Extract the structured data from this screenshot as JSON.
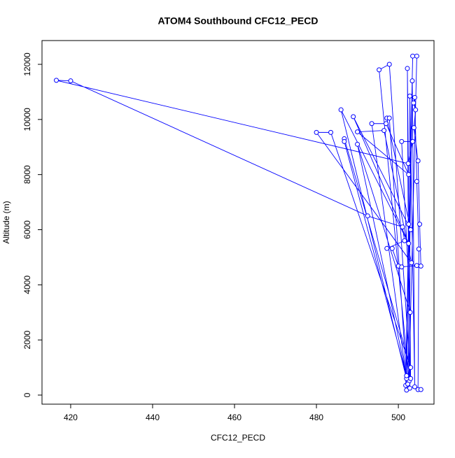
{
  "chart_data": {
    "type": "line",
    "title": "ATOM4 Southbound CFC12_PECD",
    "x_label": "CFC12_PECD",
    "y_label": "Altitude (m)",
    "xlim": [
      413,
      508.7
    ],
    "ylim": [
      -330,
      12863
    ],
    "xticks": [
      420,
      440,
      460,
      480,
      500
    ],
    "yticks": [
      0,
      2000,
      4000,
      6000,
      8000,
      10000,
      12000
    ],
    "color": "#0000ff",
    "x": [
      502.0,
      502.5,
      501.8,
      503.5,
      504.5,
      502.6,
      502.2,
      503.0,
      497.8,
      495.3,
      502.8,
      502.8,
      504.0,
      503.4,
      502.3,
      486.0,
      502.5,
      489.0,
      503.0,
      497.2,
      497.8,
      502.0,
      493.5,
      497.0,
      502.5,
      490.0,
      496.5,
      503.2,
      480.0,
      483.5,
      503.0,
      486.8,
      486.8,
      502.0,
      490.0,
      502.9,
      500.8,
      503.5,
      502.4,
      416.5,
      420.0,
      492.5,
      501.0,
      501.5,
      497.2,
      498.5,
      500.0,
      500.8,
      504.5,
      505.5,
      505.2,
      504.8,
      503.8,
      504.2,
      503.7,
      504.0,
      504.5,
      505.0,
      504.8,
      505.5
    ],
    "values": [
      180,
      6200,
      350,
      12300,
      12300,
      500,
      11850,
      600,
      12000,
      11800,
      250,
      10850,
      300,
      11400,
      400,
      10350,
      5500,
      10100,
      6000,
      10050,
      10050,
      600,
      9850,
      9850,
      8000,
      9550,
      9600,
      4800,
      9530,
      9530,
      1000,
      9300,
      9200,
      700,
      9100,
      3000,
      9200,
      9200,
      8400,
      11420,
      11400,
      6500,
      6100,
      5600,
      5320,
      5320,
      4680,
      4650,
      4700,
      4680,
      6200,
      8500,
      9700,
      10350,
      10600,
      10800,
      7750,
      5300,
      200,
      200
    ]
  }
}
